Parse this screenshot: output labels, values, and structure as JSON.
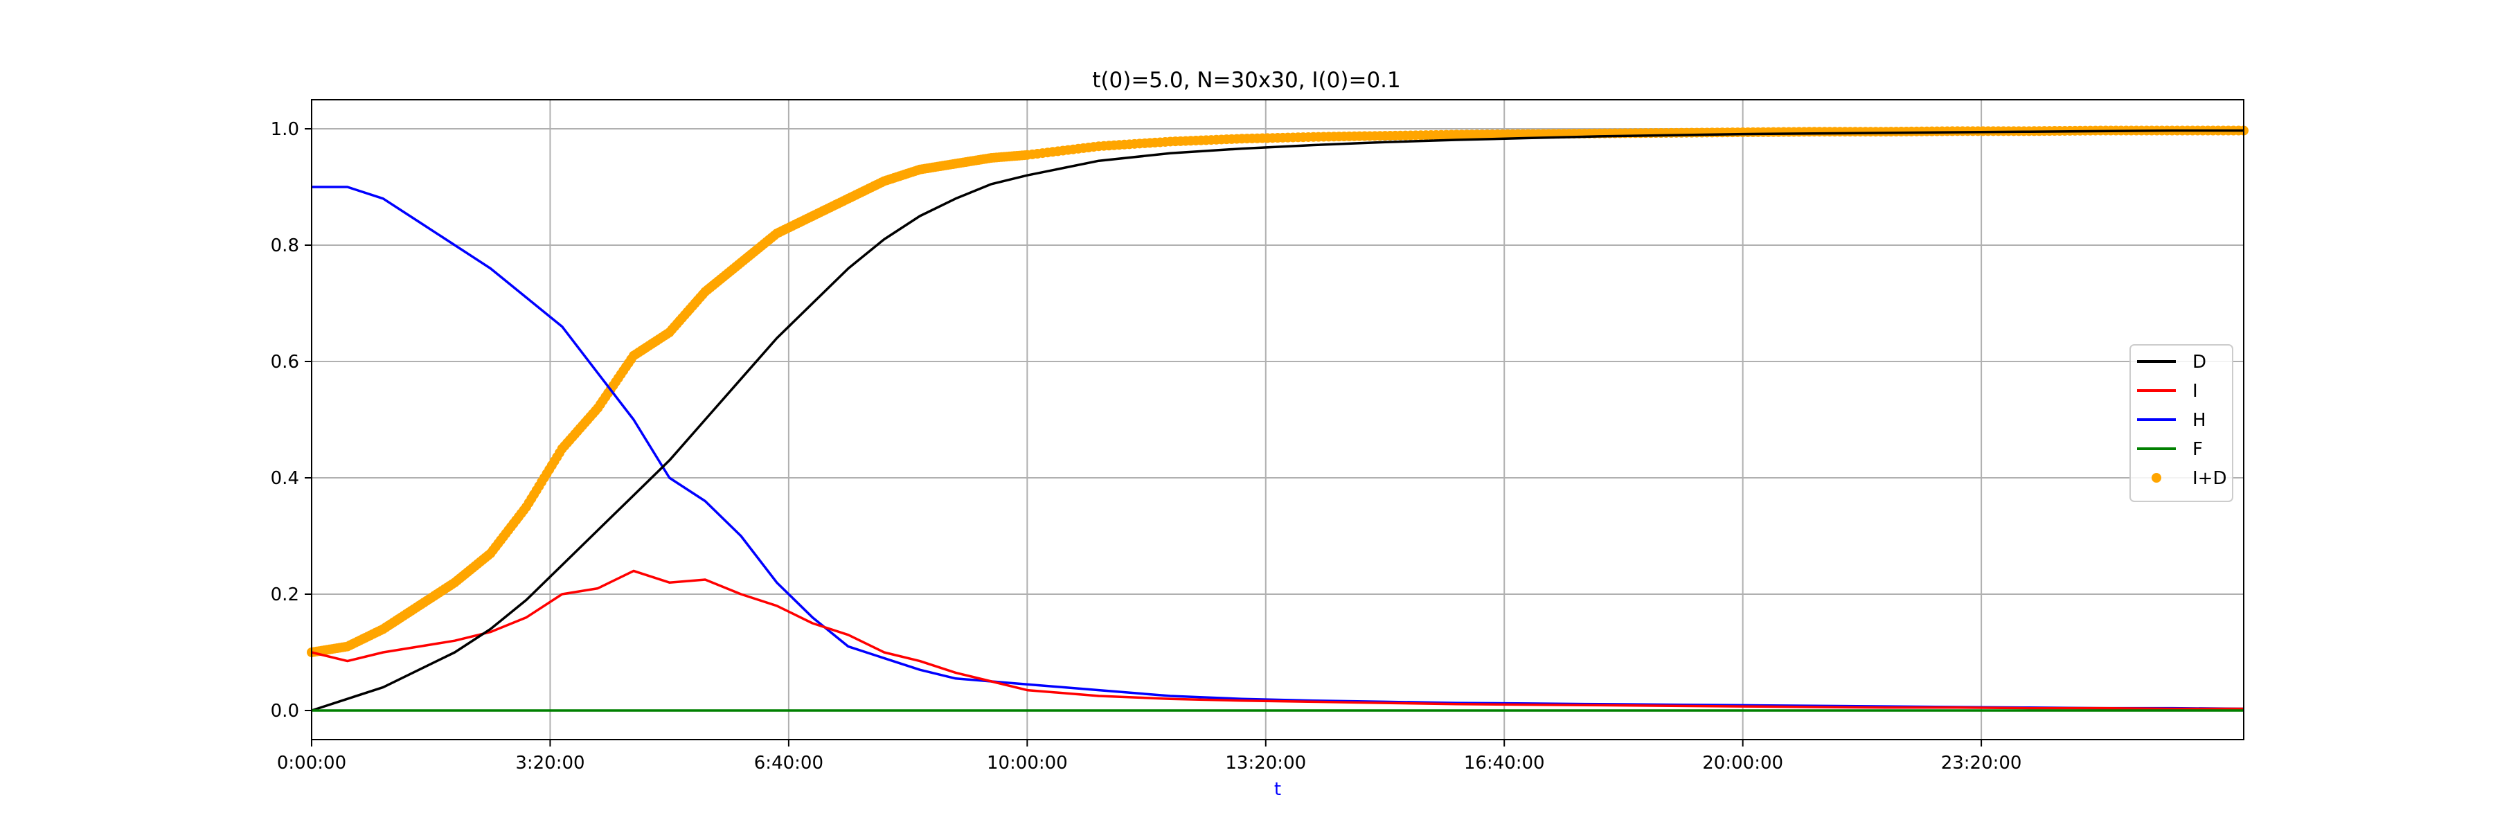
{
  "chart_data": {
    "type": "line",
    "title": "t(0)=5.0, N=30x30, I(0)=0.1",
    "xlabel": "t",
    "ylabel": "",
    "x_unit": "hours",
    "xlim": [
      0,
      27
    ],
    "ylim": [
      -0.05,
      1.05
    ],
    "x_ticks": [
      0,
      3.3333,
      6.6667,
      10,
      13.3333,
      16.6667,
      20,
      23.3333
    ],
    "x_tick_labels": [
      "0:00:00",
      "3:20:00",
      "6:40:00",
      "10:00:00",
      "13:20:00",
      "16:40:00",
      "20:00:00",
      "23:20:00"
    ],
    "y_ticks": [
      0.0,
      0.2,
      0.4,
      0.6,
      0.8,
      1.0
    ],
    "y_tick_labels": [
      "0.0",
      "0.2",
      "0.4",
      "0.6",
      "0.8",
      "1.0"
    ],
    "grid": true,
    "legend_position": "center-right",
    "x": [
      0,
      0.5,
      1,
      1.5,
      2,
      2.5,
      3,
      3.5,
      4,
      4.5,
      5,
      5.5,
      6,
      6.5,
      7,
      7.5,
      8,
      8.5,
      9,
      9.5,
      10,
      11,
      12,
      13,
      14,
      15,
      16,
      17,
      18,
      19,
      20,
      21,
      22,
      23,
      24,
      25,
      26,
      27
    ],
    "series": [
      {
        "name": "D",
        "color": "#000000",
        "style": "line",
        "values": [
          0.0,
          0.02,
          0.04,
          0.07,
          0.1,
          0.14,
          0.19,
          0.25,
          0.31,
          0.37,
          0.43,
          0.5,
          0.57,
          0.64,
          0.7,
          0.76,
          0.81,
          0.85,
          0.88,
          0.905,
          0.92,
          0.945,
          0.958,
          0.966,
          0.972,
          0.977,
          0.981,
          0.984,
          0.987,
          0.989,
          0.991,
          0.992,
          0.993,
          0.994,
          0.995,
          0.996,
          0.997,
          0.997
        ]
      },
      {
        "name": "I",
        "color": "#ff0000",
        "style": "line",
        "values": [
          0.1,
          0.085,
          0.1,
          0.11,
          0.12,
          0.135,
          0.16,
          0.2,
          0.21,
          0.24,
          0.22,
          0.225,
          0.2,
          0.18,
          0.15,
          0.13,
          0.1,
          0.085,
          0.065,
          0.05,
          0.035,
          0.025,
          0.02,
          0.017,
          0.015,
          0.013,
          0.011,
          0.01,
          0.009,
          0.008,
          0.007,
          0.006,
          0.005,
          0.005,
          0.004,
          0.004,
          0.003,
          0.003
        ]
      },
      {
        "name": "H",
        "color": "#0000ff",
        "style": "line",
        "values": [
          0.9,
          0.9,
          0.88,
          0.84,
          0.8,
          0.76,
          0.71,
          0.66,
          0.58,
          0.5,
          0.4,
          0.36,
          0.3,
          0.22,
          0.16,
          0.11,
          0.09,
          0.07,
          0.055,
          0.05,
          0.045,
          0.035,
          0.025,
          0.02,
          0.017,
          0.015,
          0.013,
          0.012,
          0.011,
          0.01,
          0.009,
          0.008,
          0.007,
          0.006,
          0.005,
          0.004,
          0.004,
          0.003
        ]
      },
      {
        "name": "F",
        "color": "#008000",
        "style": "line",
        "values": [
          0,
          0,
          0,
          0,
          0,
          0,
          0,
          0,
          0,
          0,
          0,
          0,
          0,
          0,
          0,
          0,
          0,
          0,
          0,
          0,
          0,
          0,
          0,
          0,
          0,
          0,
          0,
          0,
          0,
          0,
          0,
          0,
          0,
          0,
          0,
          0,
          0,
          0
        ]
      },
      {
        "name": "I+D",
        "color": "#ffa500",
        "style": "markers",
        "values": [
          0.1,
          0.11,
          0.14,
          0.18,
          0.22,
          0.27,
          0.35,
          0.45,
          0.52,
          0.61,
          0.65,
          0.72,
          0.77,
          0.82,
          0.85,
          0.88,
          0.91,
          0.93,
          0.94,
          0.95,
          0.955,
          0.97,
          0.978,
          0.983,
          0.986,
          0.988,
          0.99,
          0.991,
          0.992,
          0.993,
          0.994,
          0.995,
          0.995,
          0.996,
          0.996,
          0.997,
          0.997,
          0.997
        ]
      }
    ]
  }
}
